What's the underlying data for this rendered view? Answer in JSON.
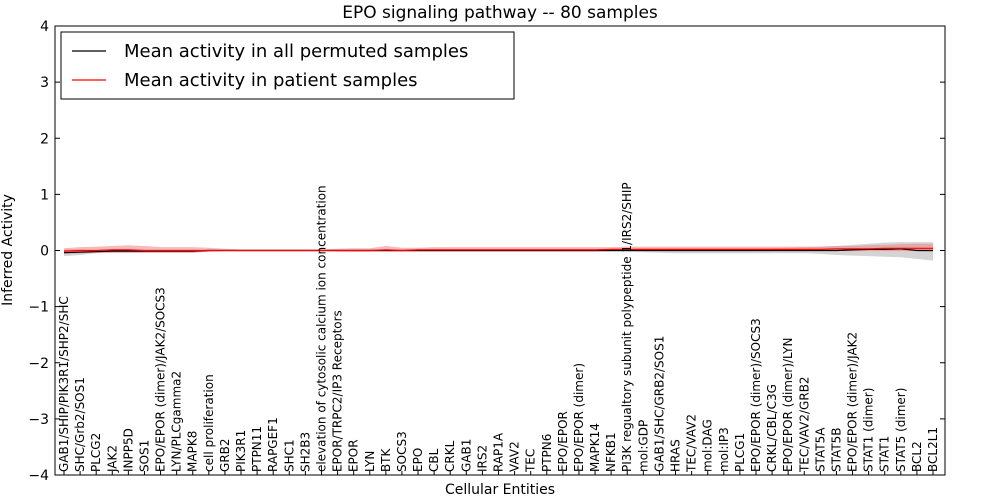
{
  "chart_data": {
    "type": "line",
    "title": "EPO signaling pathway -- 80 samples",
    "xlabel": "Cellular Entities",
    "ylabel": "Inferred Activity",
    "ylim": [
      -4,
      4
    ],
    "yticks": [
      -4,
      -3,
      -2,
      -1,
      0,
      1,
      2,
      3,
      4
    ],
    "grid": false,
    "legend_position": "top-left",
    "categories": [
      "GAB1/SHIP/PIK3R1/SHP2/SHC",
      "SHC/Grb2/SOS1",
      "PLCG2",
      "JAK2",
      "INPP5D",
      "SOS1",
      "EPO/EPOR (dimer)/JAK2/SOCS3",
      "LYN/PLCgamma2",
      "MAPK8",
      "cell proliferation",
      "GRB2",
      "PIK3R1",
      "PTPN11",
      "RAPGEF1",
      "SHC1",
      "SH2B3",
      "elevation of cytosolic calcium ion concentration",
      "EPOR/TRPC2/IP3 Receptors",
      "EPOR",
      "LYN",
      "BTK",
      "SOCS3",
      "EPO",
      "CBL",
      "CRKL",
      "GAB1",
      "IRS2",
      "RAP1A",
      "VAV2",
      "TEC",
      "PTPN6",
      "EPO/EPOR",
      "EPO/EPOR (dimer)",
      "MAPK14",
      "NFKB1",
      "PI3K regualtory subunit polypeptide 1/IRS2/SHIP",
      "mol:GDP",
      "GAB1/SHC/GRB2/SOS1",
      "HRAS",
      "TEC/VAV2",
      "mol:DAG",
      "mol:IP3",
      "PLCG1",
      "EPO/EPOR (dimer)/SOCS3",
      "CRKL/CBL/C3G",
      "EPO/EPOR (dimer)/LYN",
      "TEC/VAV2/GRB2",
      "STAT5A",
      "STAT5B",
      "EPO/EPOR (dimer)/JAK2",
      "STAT1 (dimer)",
      "STAT1",
      "STAT5 (dimer)",
      "BCL2",
      "BCL2L1"
    ],
    "series": [
      {
        "name": "Mean activity in all permuted samples",
        "color": "#000000",
        "band_color": "#b0b0b0",
        "values": [
          -0.04,
          -0.03,
          -0.02,
          -0.01,
          -0.01,
          -0.01,
          -0.01,
          -0.01,
          -0.01,
          0,
          0,
          0,
          0,
          0,
          0,
          0,
          0,
          0,
          0,
          0,
          0,
          0,
          0,
          0,
          0,
          0,
          0,
          0,
          0,
          0,
          0,
          0,
          0,
          0,
          0,
          0,
          0,
          0,
          0,
          0,
          0,
          0,
          0,
          0,
          0,
          0,
          0,
          0,
          0,
          0.01,
          0.02,
          0.02,
          0.03,
          0,
          0
        ],
        "lower": [
          -0.1,
          -0.08,
          -0.05,
          -0.04,
          -0.04,
          -0.04,
          -0.04,
          -0.04,
          -0.04,
          -0.02,
          -0.01,
          -0.01,
          -0.01,
          -0.01,
          -0.01,
          -0.01,
          -0.01,
          -0.01,
          -0.02,
          -0.02,
          -0.02,
          -0.02,
          -0.02,
          -0.02,
          -0.02,
          -0.02,
          -0.02,
          -0.02,
          -0.02,
          -0.02,
          -0.02,
          -0.02,
          -0.02,
          -0.02,
          -0.02,
          -0.02,
          -0.03,
          -0.04,
          -0.05,
          -0.05,
          -0.05,
          -0.05,
          -0.05,
          -0.05,
          -0.05,
          -0.05,
          -0.05,
          -0.06,
          -0.08,
          -0.09,
          -0.1,
          -0.11,
          -0.12,
          -0.15,
          -0.18
        ],
        "upper": [
          0.02,
          0.02,
          0.01,
          0.01,
          0.01,
          0.01,
          0.01,
          0.01,
          0.01,
          0.01,
          0.01,
          0.01,
          0.01,
          0.01,
          0.01,
          0.01,
          0.01,
          0.01,
          0.01,
          0.01,
          0.01,
          0.01,
          0.01,
          0.01,
          0.01,
          0.01,
          0.01,
          0.01,
          0.01,
          0.01,
          0.01,
          0.02,
          0.02,
          0.02,
          0.02,
          0.02,
          0.02,
          0.02,
          0.02,
          0.02,
          0.02,
          0.02,
          0.02,
          0.03,
          0.04,
          0.05,
          0.06,
          0.07,
          0.08,
          0.1,
          0.12,
          0.14,
          0.15,
          0.15,
          0.15
        ]
      },
      {
        "name": "Mean activity in patient samples",
        "color": "#ff0000",
        "band_color": "#f08080",
        "values": [
          -0.01,
          0,
          0,
          0.01,
          0.01,
          0,
          0,
          0,
          0,
          0,
          0,
          0,
          0,
          0,
          0,
          0,
          0,
          0,
          0,
          0,
          0.01,
          0,
          0.01,
          0.01,
          0.01,
          0.01,
          0.01,
          0.01,
          0.01,
          0.01,
          0.01,
          0.01,
          0.01,
          0.01,
          0.02,
          0.02,
          0.02,
          0.02,
          0.02,
          0.02,
          0.02,
          0.02,
          0.02,
          0.02,
          0.02,
          0.02,
          0.02,
          0.02,
          0.03,
          0.03,
          0.03,
          0.04,
          0.04,
          0.04,
          0.04
        ],
        "lower": [
          -0.06,
          -0.05,
          -0.04,
          -0.04,
          -0.04,
          -0.04,
          -0.04,
          -0.04,
          -0.04,
          -0.02,
          -0.01,
          -0.01,
          -0.01,
          -0.01,
          -0.01,
          -0.01,
          -0.01,
          -0.02,
          -0.02,
          -0.02,
          -0.02,
          -0.02,
          -0.02,
          -0.02,
          -0.02,
          -0.02,
          -0.02,
          -0.02,
          -0.02,
          -0.02,
          -0.02,
          -0.02,
          -0.02,
          -0.02,
          -0.01,
          -0.01,
          -0.01,
          -0.01,
          -0.01,
          -0.01,
          -0.01,
          -0.01,
          -0.01,
          -0.01,
          -0.01,
          -0.01,
          -0.01,
          -0.01,
          -0.01,
          -0.01,
          -0.01,
          -0.01,
          -0.01,
          -0.01,
          -0.02
        ],
        "upper": [
          0.04,
          0.06,
          0.07,
          0.08,
          0.09,
          0.08,
          0.06,
          0.06,
          0.06,
          0.05,
          0.03,
          0.02,
          0.02,
          0.02,
          0.02,
          0.02,
          0.02,
          0.03,
          0.04,
          0.04,
          0.08,
          0.05,
          0.05,
          0.06,
          0.06,
          0.06,
          0.06,
          0.06,
          0.06,
          0.06,
          0.06,
          0.06,
          0.06,
          0.06,
          0.06,
          0.07,
          0.07,
          0.07,
          0.07,
          0.07,
          0.07,
          0.07,
          0.07,
          0.07,
          0.07,
          0.07,
          0.07,
          0.07,
          0.08,
          0.08,
          0.09,
          0.1,
          0.11,
          0.12,
          0.12
        ]
      }
    ]
  }
}
